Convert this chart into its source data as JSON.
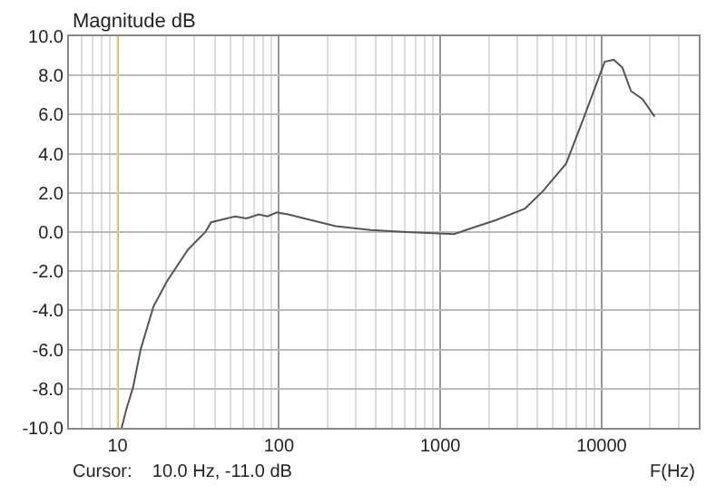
{
  "chart_data": {
    "type": "line",
    "ylabel": "Magnitude dB",
    "xlabel": "F(Hz)",
    "log": "x",
    "grid": true,
    "marker": "none",
    "line_style": "solid",
    "xlim": [
      5,
      40000
    ],
    "xticks": [
      10,
      100,
      1000,
      10000
    ],
    "ylim": [
      -10,
      10
    ],
    "yticks": [
      {
        "value": -10,
        "label": "-10.0"
      },
      {
        "value": -8,
        "label": "-8.0"
      },
      {
        "value": -6,
        "label": "-6.0"
      },
      {
        "value": -4,
        "label": "-4.0"
      },
      {
        "value": -2,
        "label": "-2.0"
      },
      {
        "value": 0,
        "label": "0.0"
      },
      {
        "value": 2,
        "label": "2.0"
      },
      {
        "value": 4,
        "label": "4.0"
      },
      {
        "value": 6,
        "label": "6.0"
      },
      {
        "value": 8,
        "label": "8.0"
      },
      {
        "value": 10,
        "label": "10.0"
      }
    ],
    "ref_lines": [
      {
        "axis": "x",
        "value": 10,
        "label": null,
        "color": "#e8d870"
      }
    ],
    "annotations": [
      "Cursor:    10.0 Hz, -11.0 dB"
    ],
    "series": [
      {
        "color": "#555555",
        "x": [
          10.6,
          11.3,
          12.5,
          13.9,
          16.7,
          20.3,
          27.3,
          35,
          38,
          53.5,
          63,
          75,
          85,
          97,
          114,
          160,
          225,
          370,
          620,
          1220,
          1700,
          2200,
          3350,
          4340,
          6030,
          7800,
          10450,
          11900,
          13450,
          15200,
          17900,
          21300
        ],
        "values": [
          -10,
          -9.1,
          -7.9,
          -6.0,
          -3.8,
          -2.5,
          -0.9,
          0.0,
          0.5,
          0.8,
          0.7,
          0.9,
          0.8,
          1.0,
          0.9,
          0.6,
          0.3,
          0.1,
          0.0,
          -0.1,
          0.3,
          0.6,
          1.2,
          2.1,
          3.5,
          5.9,
          8.7,
          8.8,
          8.4,
          7.2,
          6.8,
          5.9
        ]
      }
    ]
  }
}
